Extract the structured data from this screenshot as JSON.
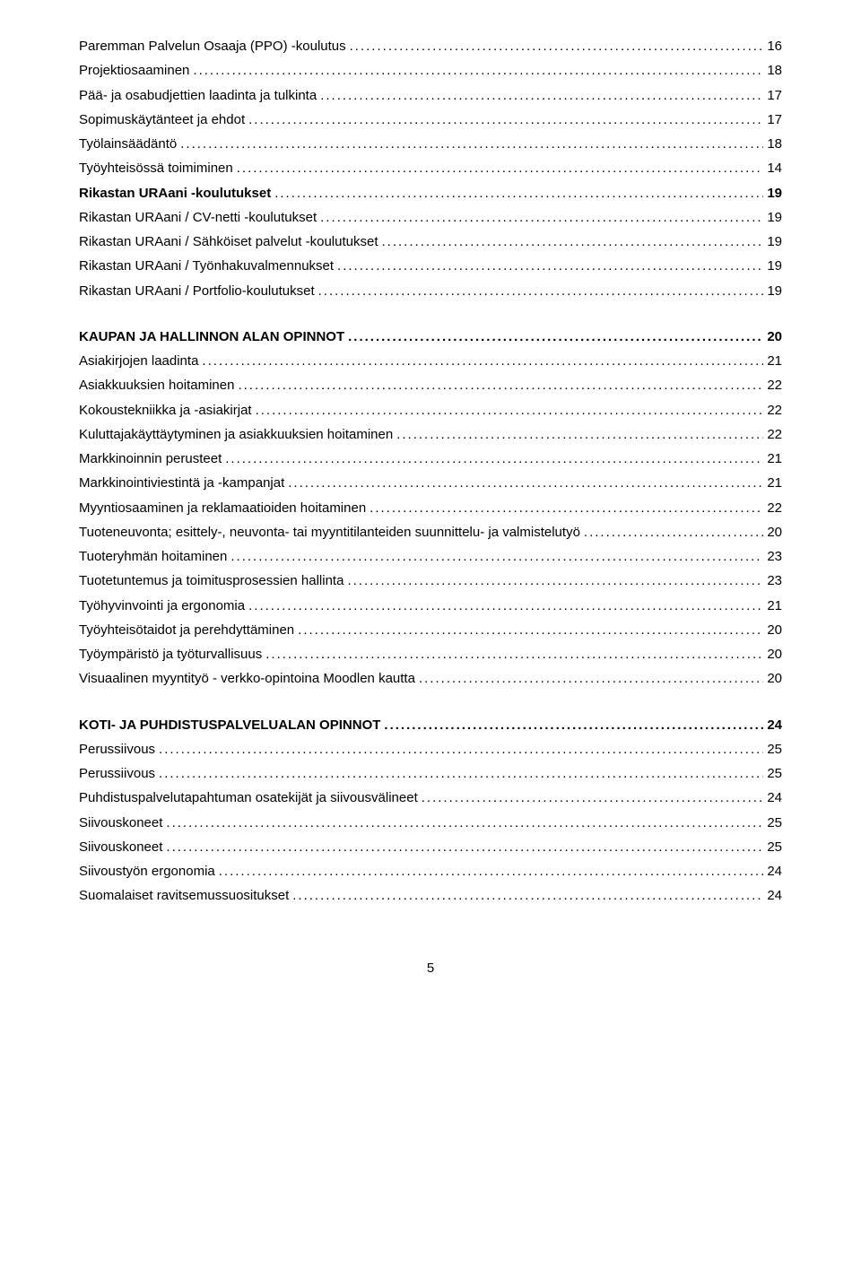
{
  "text_color": "#000000",
  "background_color": "#ffffff",
  "font_family": "Arial",
  "font_size_pt": 12,
  "line_height": 1.55,
  "page_number": "5",
  "toc": [
    {
      "type": "entry",
      "label": "Paremman Palvelun Osaaja (PPO) -koulutus",
      "page": "16",
      "bold": false
    },
    {
      "type": "entry",
      "label": "Projektiosaaminen",
      "page": "18",
      "bold": false
    },
    {
      "type": "entry",
      "label": "Pää- ja osabudjettien laadinta ja tulkinta",
      "page": "17",
      "bold": false
    },
    {
      "type": "entry",
      "label": "Sopimuskäytänteet ja ehdot",
      "page": "17",
      "bold": false
    },
    {
      "type": "entry",
      "label": "Työlainsäädäntö",
      "page": "18",
      "bold": false
    },
    {
      "type": "entry",
      "label": "Työyhteisössä toimiminen",
      "page": "14",
      "bold": false
    },
    {
      "type": "entry",
      "label": "Rikastan URAani -koulutukset",
      "page": "19",
      "bold": true
    },
    {
      "type": "entry",
      "label": "Rikastan URAani / CV-netti -koulutukset",
      "page": "19",
      "bold": false
    },
    {
      "type": "entry",
      "label": "Rikastan URAani / Sähköiset palvelut -koulutukset",
      "page": "19",
      "bold": false
    },
    {
      "type": "entry",
      "label": "Rikastan URAani / Työnhakuvalmennukset",
      "page": "19",
      "bold": false
    },
    {
      "type": "entry",
      "label": "Rikastan URAani / Portfolio-koulutukset",
      "page": "19",
      "bold": false
    },
    {
      "type": "heading",
      "label": "KAUPAN JA HALLINNON ALAN OPINNOT",
      "page": "20"
    },
    {
      "type": "entry",
      "label": "Asiakirjojen laadinta",
      "page": "21",
      "bold": false
    },
    {
      "type": "entry",
      "label": "Asiakkuuksien hoitaminen",
      "page": "22",
      "bold": false
    },
    {
      "type": "entry",
      "label": "Kokoustekniikka ja -asiakirjat",
      "page": "22",
      "bold": false
    },
    {
      "type": "entry",
      "label": "Kuluttajakäyttäytyminen ja asiakkuuksien hoitaminen",
      "page": "22",
      "bold": false
    },
    {
      "type": "entry",
      "label": "Markkinoinnin perusteet",
      "page": "21",
      "bold": false
    },
    {
      "type": "entry",
      "label": "Markkinointiviestintä ja -kampanjat",
      "page": "21",
      "bold": false
    },
    {
      "type": "entry",
      "label": "Myyntiosaaminen ja reklamaatioiden hoitaminen",
      "page": "22",
      "bold": false
    },
    {
      "type": "entry",
      "label": "Tuoteneuvonta; esittely-, neuvonta- tai myyntitilanteiden suunnittelu- ja valmistelutyö",
      "page": "20",
      "bold": false
    },
    {
      "type": "entry",
      "label": "Tuoteryhmän hoitaminen",
      "page": "23",
      "bold": false
    },
    {
      "type": "entry",
      "label": "Tuotetuntemus ja toimitusprosessien hallinta",
      "page": "23",
      "bold": false
    },
    {
      "type": "entry",
      "label": "Työhyvinvointi ja ergonomia",
      "page": "21",
      "bold": false
    },
    {
      "type": "entry",
      "label": "Työyhteisötaidot ja perehdyttäminen",
      "page": "20",
      "bold": false
    },
    {
      "type": "entry",
      "label": "Työympäristö ja työturvallisuus",
      "page": "20",
      "bold": false
    },
    {
      "type": "entry",
      "label": "Visuaalinen myyntityö - verkko-opintoina Moodlen kautta",
      "page": "20",
      "bold": false
    },
    {
      "type": "heading",
      "label": "KOTI- JA PUHDISTUSPALVELUALAN OPINNOT",
      "page": "24"
    },
    {
      "type": "entry",
      "label": "Perussiivous",
      "page": "25",
      "bold": false
    },
    {
      "type": "entry",
      "label": "Perussiivous",
      "page": "25",
      "bold": false
    },
    {
      "type": "entry",
      "label": "Puhdistuspalvelutapahtuman osatekijät ja siivousvälineet",
      "page": "24",
      "bold": false
    },
    {
      "type": "entry",
      "label": "Siivouskoneet",
      "page": "25",
      "bold": false
    },
    {
      "type": "entry",
      "label": "Siivouskoneet",
      "page": "25",
      "bold": false
    },
    {
      "type": "entry",
      "label": "Siivoustyön ergonomia",
      "page": "24",
      "bold": false
    },
    {
      "type": "entry",
      "label": "Suomalaiset ravitsemussuositukset",
      "page": "24",
      "bold": false
    }
  ]
}
